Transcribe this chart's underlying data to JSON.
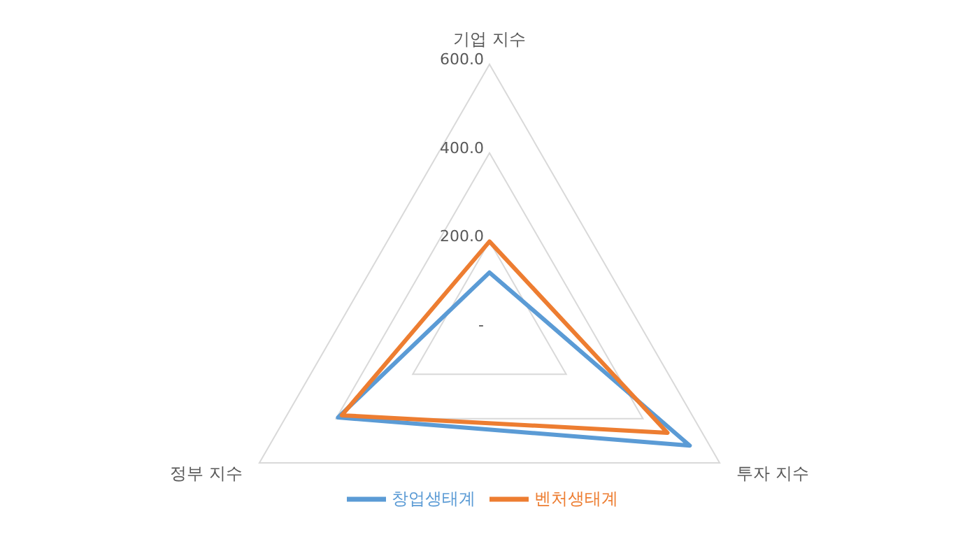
{
  "chart_data": {
    "type": "radar",
    "categories": [
      "기업 지수",
      "투자 지수",
      "정부 지수"
    ],
    "series": [
      {
        "name": "창업생태계",
        "color": "#5b9bd5",
        "values": [
          130,
          522,
          395
        ]
      },
      {
        "name": "벤처생태계",
        "color": "#ed7d31",
        "values": [
          200,
          464,
          385
        ]
      }
    ],
    "ylim": [
      0,
      600
    ],
    "yticks": [
      {
        "value": 0,
        "label": "-"
      },
      {
        "value": 200,
        "label": "200.0"
      },
      {
        "value": 400,
        "label": "400.0"
      },
      {
        "value": 600,
        "label": "600.0"
      }
    ],
    "grid": true,
    "legend": "bottom",
    "marker": "none"
  }
}
